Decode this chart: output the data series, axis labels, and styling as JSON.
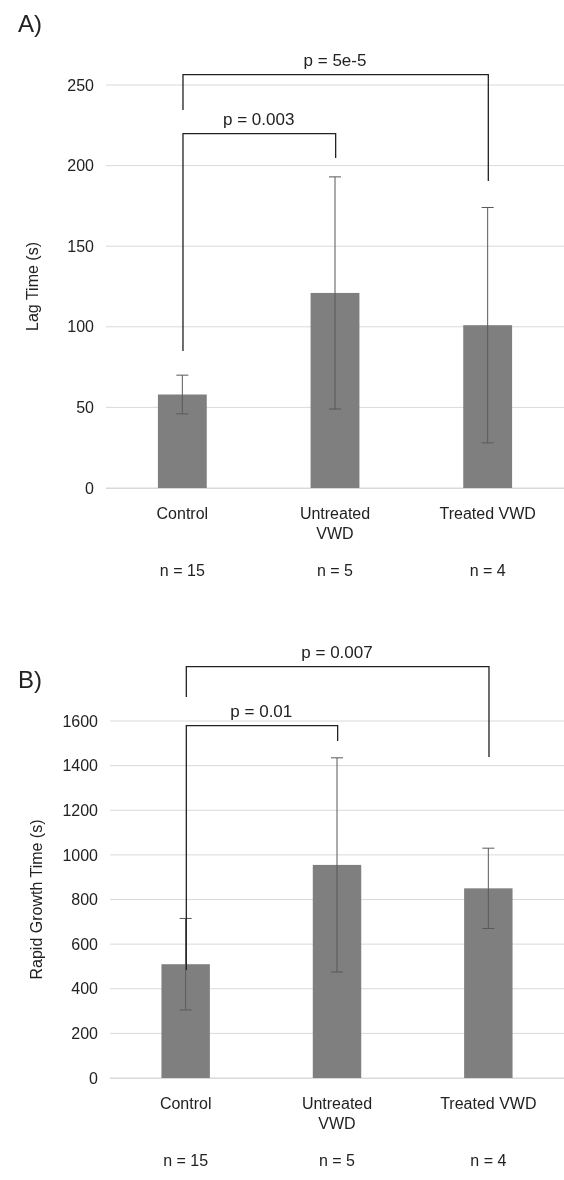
{
  "chart_data": [
    {
      "type": "bar",
      "title": "A)",
      "ylabel": "Lag Time (s)",
      "categories": [
        "Control",
        "Untreated VWD",
        "Treated VWD"
      ],
      "values": [
        58,
        121,
        101
      ],
      "errors": [
        12,
        72,
        73
      ],
      "color": "#7f7f7f",
      "ylim": [
        0,
        250
      ],
      "yticks": [
        0,
        50,
        100,
        150,
        200,
        250
      ],
      "grid": "y",
      "annotations": [
        "p = 0.003",
        "p = 5e-5",
        "n = 15",
        "n = 5",
        "n = 4"
      ]
    },
    {
      "type": "bar",
      "title": "B)",
      "ylabel": "Rapid Growth Time (s)",
      "categories": [
        "Control",
        "Untreated VWD",
        "Treated VWD"
      ],
      "values": [
        510,
        955,
        850
      ],
      "errors": [
        205,
        480,
        180
      ],
      "color": "#7f7f7f",
      "ylim": [
        0,
        1600
      ],
      "yticks": [
        0,
        200,
        400,
        600,
        800,
        1000,
        1200,
        1400,
        1600
      ],
      "grid": "y",
      "annotations": [
        "p = 0.01",
        "p = 0.007",
        "n = 15",
        "n = 5",
        "n = 4"
      ]
    }
  ]
}
